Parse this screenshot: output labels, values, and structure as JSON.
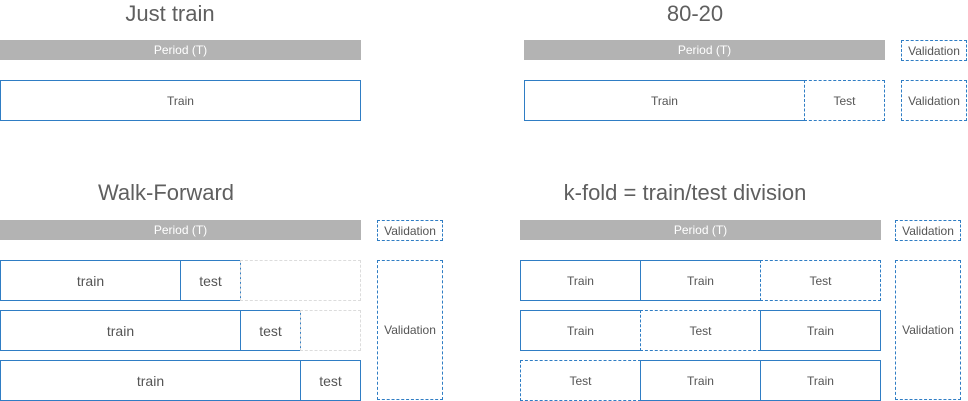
{
  "just_train": {
    "title": "Just train",
    "period_label": "Period (T)",
    "train_label": "Train"
  },
  "eighty_twenty": {
    "title": "80-20",
    "period_label": "Period (T)",
    "validation_label": "Validation",
    "train_label": "Train",
    "test_label": "Test",
    "validation_row_label": "Validation"
  },
  "walk_forward": {
    "title": "Walk-Forward",
    "period_label": "Period (T)",
    "validation_label": "Validation",
    "validation_block_label": "Validation",
    "rows": [
      {
        "train": "train",
        "test": "test"
      },
      {
        "train": "train",
        "test": "test"
      },
      {
        "train": "train",
        "test": "test"
      }
    ]
  },
  "kfold": {
    "title": "k-fold = train/test division",
    "period_label": "Period (T)",
    "validation_label": "Validation",
    "validation_block_label": "Validation",
    "rows": [
      [
        "Train",
        "Train",
        "Test"
      ],
      [
        "Train",
        "Test",
        "Train"
      ],
      [
        "Test",
        "Train",
        "Train"
      ]
    ]
  },
  "colors": {
    "period_bar": "#b3b3b3",
    "border": "#2f7dc4"
  }
}
